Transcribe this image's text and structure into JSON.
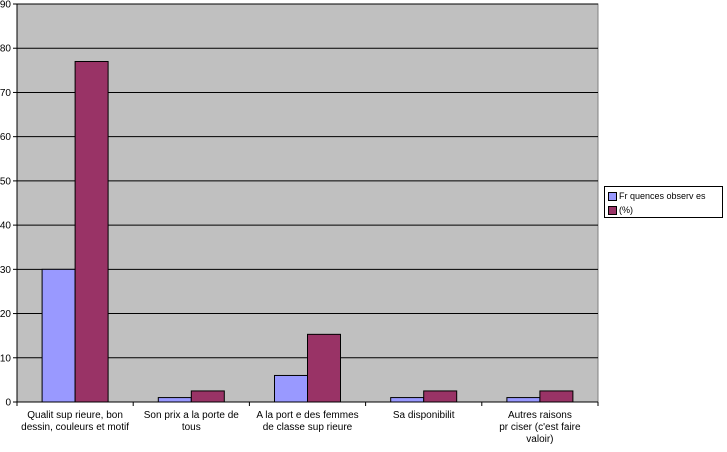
{
  "chart_data": {
    "type": "bar",
    "categories": [
      [
        "Qualit   sup  rieure, bon",
        "dessin, couleurs et motif"
      ],
      [
        "Son prix a la porte de",
        "tous"
      ],
      [
        "A la port  e des femmes",
        "de classe sup  rieure"
      ],
      [
        "Sa disponibilit"
      ],
      [
        "Autres raisons",
        "pr  ciser (c'est faire",
        "valoir)"
      ]
    ],
    "series": [
      {
        "name": "Fr  quences observ  es",
        "values": [
          30,
          1,
          6,
          1,
          1
        ],
        "color": "#9999ff"
      },
      {
        "name": "(%)",
        "values": [
          77,
          2.5,
          15.3,
          2.5,
          2.5
        ],
        "color": "#993366"
      }
    ],
    "title": "",
    "xlabel": "",
    "ylabel": "",
    "ylim": [
      0,
      90
    ],
    "yticks": [
      0,
      10,
      20,
      30,
      40,
      50,
      60,
      70,
      80,
      90
    ],
    "grid": true,
    "plot_background": "#c0c0c0",
    "legend_position": "right"
  }
}
